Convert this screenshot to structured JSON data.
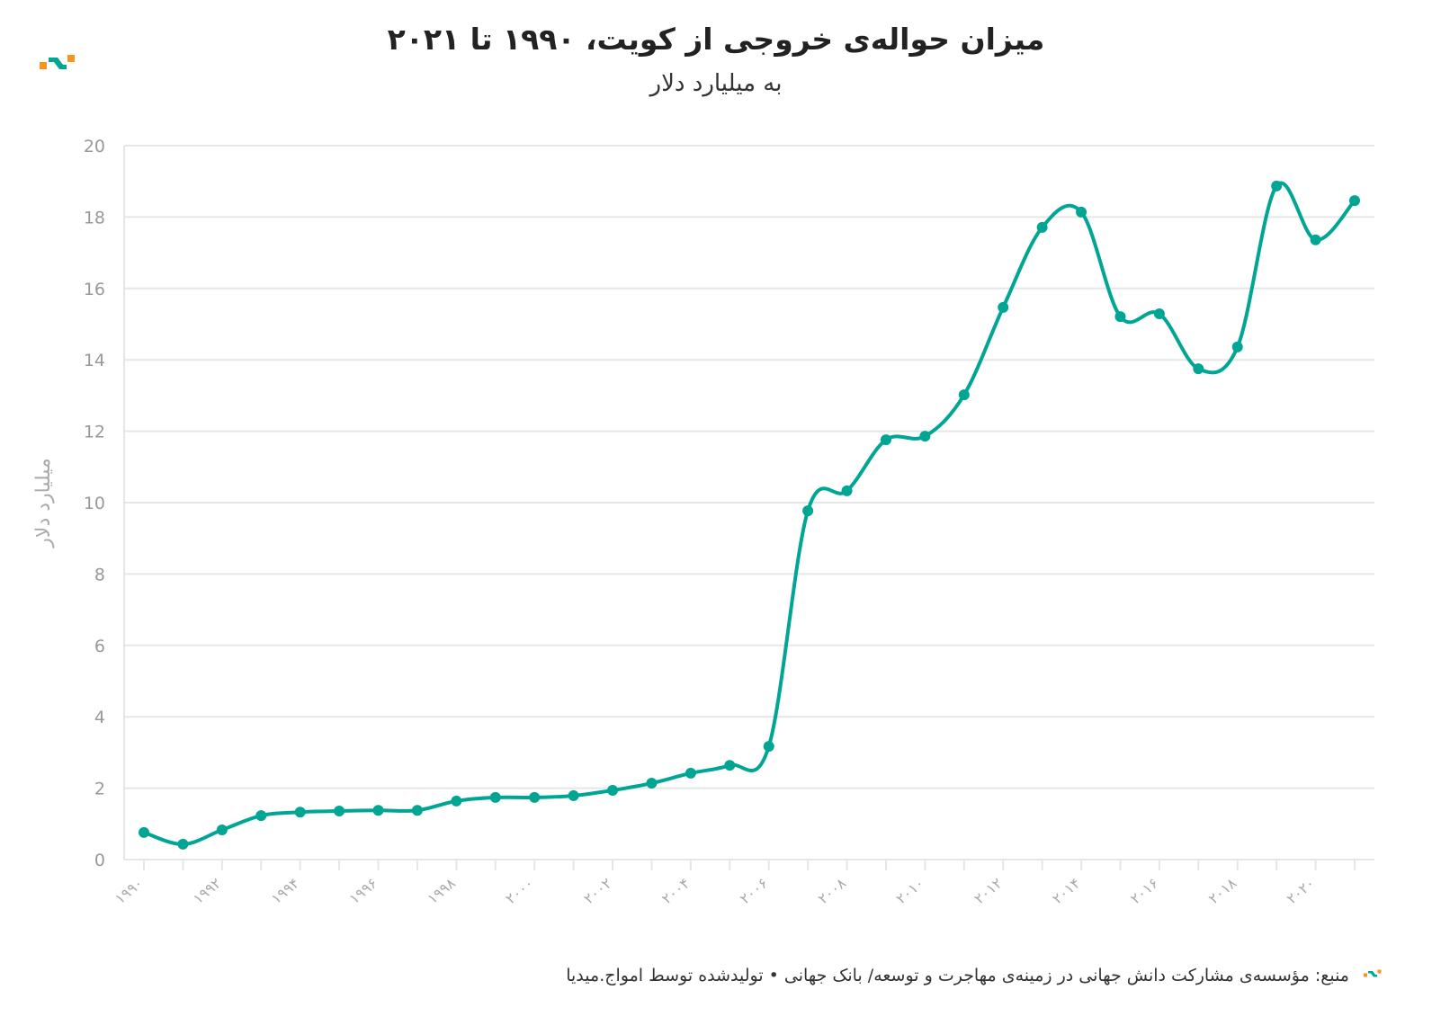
{
  "header": {
    "title": "میزان حواله‌ی خروجی از کویت، ۱۹۹۰ تا ۲۰۲۱",
    "subtitle": "به میلیارد دلار"
  },
  "footer": {
    "source": "منبع: مؤسسه‌ی مشارکت دانش جهانی در زمینه‌ی مهاجرت و توسعه/ بانک جهانی • تولیدشده توسط امواج.میدیا"
  },
  "colors": {
    "line": "#00a693",
    "grid": "#e6e6e6",
    "logo_orange": "#f7941d",
    "logo_teal": "#00a693"
  },
  "chart_data": {
    "type": "line",
    "title": "میزان حواله‌ی خروجی از کویت، ۱۹۹۰ تا ۲۰۲۱",
    "subtitle": "به میلیارد دلار",
    "xlabel": "",
    "ylabel": "میلیارد دلار",
    "ylim": [
      0,
      20
    ],
    "yticks": [
      "0",
      "2",
      "4",
      "6",
      "8",
      "10",
      "12",
      "14",
      "16",
      "18",
      "20"
    ],
    "xticks": [
      "۱۹۹۰",
      "۱۹۹۲",
      "۱۹۹۴",
      "۱۹۹۶",
      "۱۹۹۸",
      "۲۰۰۰",
      "۲۰۰۲",
      "۲۰۰۴",
      "۲۰۰۶",
      "۲۰۰۸",
      "۲۰۱۰",
      "۲۰۱۲",
      "۲۰۱۴",
      "۲۰۱۶",
      "۲۰۱۸",
      "۲۰۲۰"
    ],
    "grid": true,
    "x": [
      1990,
      1991,
      1992,
      1993,
      1994,
      1995,
      1996,
      1997,
      1998,
      1999,
      2000,
      2001,
      2002,
      2003,
      2004,
      2005,
      2006,
      2007,
      2008,
      2009,
      2010,
      2011,
      2012,
      2013,
      2014,
      2015,
      2016,
      2017,
      2018,
      2019,
      2020,
      2021
    ],
    "series": [
      {
        "name": "حواله‌ی خروجی",
        "values": [
          0.76,
          0.43,
          0.83,
          1.23,
          1.33,
          1.36,
          1.38,
          1.38,
          1.64,
          1.74,
          1.74,
          1.79,
          1.94,
          2.14,
          2.42,
          2.64,
          3.17,
          9.77,
          10.33,
          11.76,
          11.86,
          13.02,
          15.47,
          17.71,
          18.14,
          15.21,
          15.29,
          13.75,
          14.36,
          18.87,
          17.36,
          18.46
        ]
      }
    ]
  }
}
